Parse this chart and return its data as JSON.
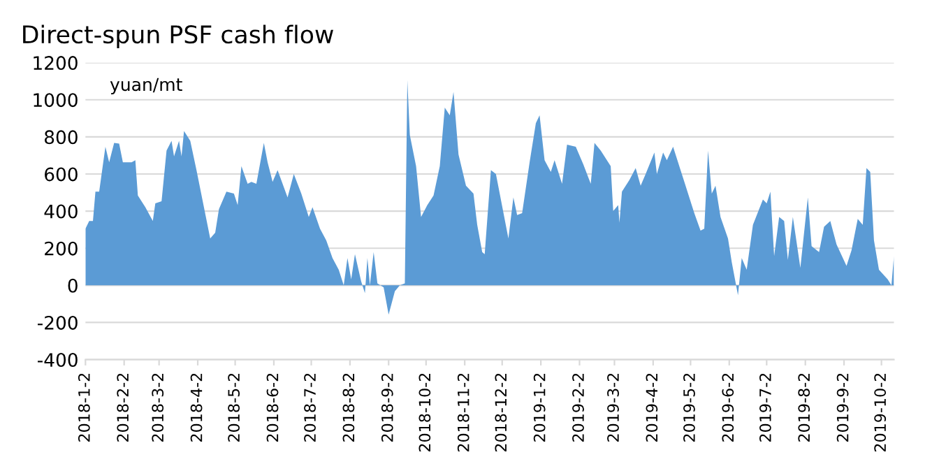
{
  "chart_data": {
    "type": "area",
    "title": "Direct-spun PSF cash flow",
    "annotations": [
      "yuan/mt"
    ],
    "x": [
      "2018-01-02",
      "2018-01-05",
      "2018-01-08",
      "2018-01-10",
      "2018-01-13",
      "2018-01-18",
      "2018-01-21",
      "2018-01-25",
      "2018-01-29",
      "2018-02-01",
      "2018-02-08",
      "2018-02-11",
      "2018-02-13",
      "2018-02-19",
      "2018-02-25",
      "2018-02-27",
      "2018-03-04",
      "2018-03-08",
      "2018-03-12",
      "2018-03-14",
      "2018-03-18",
      "2018-03-20",
      "2018-03-22",
      "2018-03-27",
      "2018-04-01",
      "2018-04-06",
      "2018-04-12",
      "2018-04-16",
      "2018-04-19",
      "2018-04-25",
      "2018-05-01",
      "2018-05-04",
      "2018-05-07",
      "2018-05-12",
      "2018-05-15",
      "2018-05-19",
      "2018-05-25",
      "2018-05-28",
      "2018-06-01",
      "2018-06-05",
      "2018-06-13",
      "2018-06-18",
      "2018-06-24",
      "2018-06-30",
      "2018-07-03",
      "2018-07-09",
      "2018-07-14",
      "2018-07-19",
      "2018-07-24",
      "2018-07-28",
      "2018-07-31",
      "2018-08-03",
      "2018-08-06",
      "2018-08-11",
      "2018-08-14",
      "2018-08-16",
      "2018-08-18",
      "2018-08-21",
      "2018-08-24",
      "2018-08-29",
      "2018-09-02",
      "2018-09-07",
      "2018-09-11",
      "2018-09-15",
      "2018-09-17",
      "2018-09-19",
      "2018-09-24",
      "2018-09-28",
      "2018-10-03",
      "2018-10-08",
      "2018-10-13",
      "2018-10-17",
      "2018-10-21",
      "2018-10-24",
      "2018-10-28",
      "2018-11-03",
      "2018-11-09",
      "2018-11-12",
      "2018-11-16",
      "2018-11-18",
      "2018-11-23",
      "2018-11-27",
      "2018-12-07",
      "2018-12-11",
      "2018-12-14",
      "2018-12-18",
      "2018-12-24",
      "2018-12-29",
      "2019-01-01",
      "2019-01-05",
      "2019-01-10",
      "2019-01-13",
      "2019-01-19",
      "2019-01-23",
      "2019-01-30",
      "2019-02-05",
      "2019-02-11",
      "2019-02-14",
      "2019-02-19",
      "2019-02-27",
      "2019-03-01",
      "2019-03-05",
      "2019-03-06",
      "2019-03-08",
      "2019-03-14",
      "2019-03-19",
      "2019-03-23",
      "2019-03-27",
      "2019-04-03",
      "2019-04-05",
      "2019-04-10",
      "2019-04-13",
      "2019-04-18",
      "2019-04-24",
      "2019-04-30",
      "2019-05-05",
      "2019-05-10",
      "2019-05-13",
      "2019-05-16",
      "2019-05-19",
      "2019-05-22",
      "2019-05-26",
      "2019-06-01",
      "2019-06-04",
      "2019-06-09",
      "2019-06-12",
      "2019-06-16",
      "2019-06-21",
      "2019-06-29",
      "2019-07-02",
      "2019-07-05",
      "2019-07-08",
      "2019-07-12",
      "2019-07-16",
      "2019-07-19",
      "2019-07-23",
      "2019-07-29",
      "2019-08-04",
      "2019-08-07",
      "2019-08-13",
      "2019-08-17",
      "2019-08-22",
      "2019-08-27",
      "2019-09-04",
      "2019-09-08",
      "2019-09-13",
      "2019-09-17",
      "2019-09-20",
      "2019-09-23",
      "2019-09-26",
      "2019-09-30",
      "2019-10-07",
      "2019-10-10",
      "2019-10-12"
    ],
    "series": [
      {
        "color": "#5b9bd5",
        "values": [
          305,
          347,
          347,
          505,
          505,
          747,
          663,
          768,
          764,
          663,
          663,
          674,
          484,
          421,
          347,
          442,
          453,
          726,
          779,
          695,
          779,
          695,
          832,
          779,
          621,
          453,
          253,
          284,
          411,
          505,
          495,
          432,
          642,
          547,
          558,
          547,
          768,
          663,
          558,
          621,
          474,
          600,
          495,
          368,
          421,
          305,
          242,
          147,
          84,
          0,
          147,
          32,
          168,
          21,
          -42,
          147,
          0,
          179,
          11,
          -11,
          -158,
          -32,
          0,
          11,
          1105,
          810,
          642,
          368,
          432,
          484,
          642,
          958,
          916,
          1042,
          705,
          537,
          495,
          326,
          179,
          168,
          621,
          600,
          253,
          474,
          379,
          389,
          663,
          874,
          916,
          674,
          611,
          674,
          547,
          758,
          747,
          653,
          547,
          768,
          726,
          642,
          400,
          432,
          337,
          505,
          568,
          632,
          537,
          600,
          716,
          600,
          716,
          674,
          747,
          621,
          495,
          389,
          295,
          305,
          726,
          495,
          537,
          368,
          253,
          126,
          -53,
          147,
          84,
          326,
          463,
          442,
          505,
          158,
          368,
          347,
          137,
          368,
          95,
          474,
          211,
          179,
          316,
          347,
          221,
          105,
          189,
          358,
          326,
          632,
          611,
          242,
          84,
          32,
          0,
          158
        ]
      }
    ],
    "xlim": [
      "2018-01-02",
      "2019-10-12"
    ],
    "xticks": [
      {
        "value": "2018-01-02",
        "label": "2018-1-2"
      },
      {
        "value": "2018-02-02",
        "label": "2018-2-2"
      },
      {
        "value": "2018-03-02",
        "label": "2018-3-2"
      },
      {
        "value": "2018-04-02",
        "label": "2018-4-2"
      },
      {
        "value": "2018-05-02",
        "label": "2018-5-2"
      },
      {
        "value": "2018-06-02",
        "label": "2018-6-2"
      },
      {
        "value": "2018-07-02",
        "label": "2018-7-2"
      },
      {
        "value": "2018-08-02",
        "label": "2018-8-2"
      },
      {
        "value": "2018-09-02",
        "label": "2018-9-2"
      },
      {
        "value": "2018-10-02",
        "label": "2018-10-2"
      },
      {
        "value": "2018-11-02",
        "label": "2018-11-2"
      },
      {
        "value": "2018-12-02",
        "label": "2018-12-2"
      },
      {
        "value": "2019-01-02",
        "label": "2019-1-2"
      },
      {
        "value": "2019-02-02",
        "label": "2019-2-2"
      },
      {
        "value": "2019-03-02",
        "label": "2019-3-2"
      },
      {
        "value": "2019-04-02",
        "label": "2019-4-2"
      },
      {
        "value": "2019-05-02",
        "label": "2019-5-2"
      },
      {
        "value": "2019-06-02",
        "label": "2019-6-2"
      },
      {
        "value": "2019-07-02",
        "label": "2019-7-2"
      },
      {
        "value": "2019-08-02",
        "label": "2019-8-2"
      },
      {
        "value": "2019-09-02",
        "label": "2019-9-2"
      },
      {
        "value": "2019-10-02",
        "label": "2019-10-2"
      }
    ],
    "ylim": [
      -400,
      1200
    ],
    "yticks": [
      -400,
      -200,
      0,
      200,
      400,
      600,
      800,
      1000,
      1200
    ],
    "grid": "y"
  }
}
